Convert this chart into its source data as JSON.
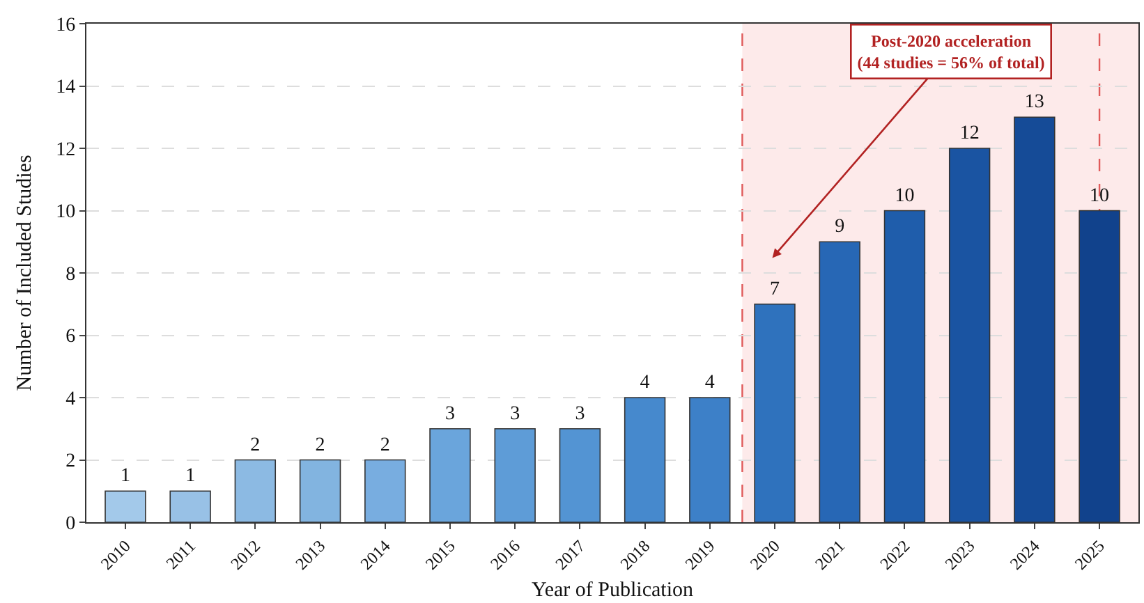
{
  "chart_data": {
    "type": "bar",
    "xlabel": "Year of Publication",
    "ylabel": "Number of Included Studies",
    "x": [
      2010,
      2011,
      2012,
      2013,
      2014,
      2015,
      2016,
      2017,
      2018,
      2019,
      2020,
      2021,
      2022,
      2023,
      2024,
      2025
    ],
    "values": [
      1,
      1,
      2,
      2,
      2,
      3,
      3,
      3,
      4,
      4,
      7,
      9,
      10,
      12,
      13,
      10
    ],
    "colors": [
      "#a3c9ea",
      "#98c1e6",
      "#8cbae3",
      "#82b4e0",
      "#78ade0",
      "#6aa5dc",
      "#5e9cd7",
      "#5394d3",
      "#4689cd",
      "#3d80c8",
      "#2f72bd",
      "#2767b5",
      "#1f5dab",
      "#1a54a2",
      "#154b97",
      "#11428c"
    ],
    "xlim": [
      2009.4,
      2025.6
    ],
    "xticks": [
      2010,
      2011,
      2012,
      2013,
      2014,
      2015,
      2016,
      2017,
      2018,
      2019,
      2020,
      2021,
      2022,
      2023,
      2024,
      2025
    ],
    "ylim": [
      0,
      16
    ],
    "yticks": [
      0,
      2,
      4,
      6,
      8,
      10,
      12,
      14,
      16
    ],
    "bands": [
      {
        "axis": "x",
        "from": 2019.5,
        "to": 2025.6,
        "color": "#fdeaea"
      }
    ],
    "ref_lines": [
      {
        "axis": "x",
        "value": 2019.5,
        "color": "#e05a5a",
        "line_style": "dashed"
      },
      {
        "axis": "x",
        "value": 2025,
        "color": "#e05a5a",
        "line_style": "dashed"
      }
    ],
    "annotations": [
      "Post-2020 acceleration\n(44 studies = 56% of total)"
    ],
    "data_labels": true,
    "grid": "y"
  }
}
